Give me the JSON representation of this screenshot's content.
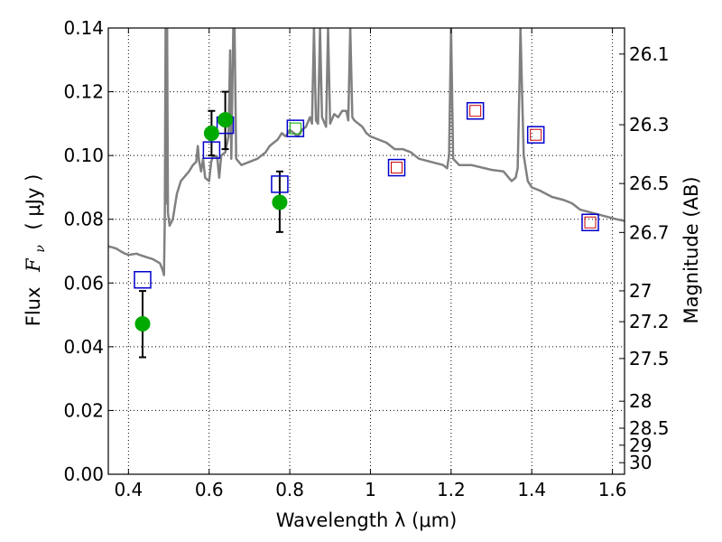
{
  "chart_data": {
    "type": "scatter",
    "xlabel": "Wavelength  λ (μm)",
    "ylabel_text": "Flux",
    "ylabel_symbol": "F",
    "ylabel_symbol_sub": "ν",
    "ylabel_unit": "( μJy )",
    "y2label": "Magnitude (AB)",
    "xlim": [
      0.35,
      1.63
    ],
    "ylim": [
      0.0,
      0.14
    ],
    "grid": true,
    "x_ticks": [
      {
        "value": 0.4,
        "label": "0.4"
      },
      {
        "value": 0.6,
        "label": "0.6"
      },
      {
        "value": 0.8,
        "label": "0.8"
      },
      {
        "value": 1.0,
        "label": "1"
      },
      {
        "value": 1.2,
        "label": "1.2"
      },
      {
        "value": 1.4,
        "label": "1.4"
      },
      {
        "value": 1.6,
        "label": "1.6"
      }
    ],
    "y_ticks": [
      {
        "value": 0.0,
        "label": "0.00"
      },
      {
        "value": 0.02,
        "label": "0.02"
      },
      {
        "value": 0.04,
        "label": "0.04"
      },
      {
        "value": 0.06,
        "label": "0.06"
      },
      {
        "value": 0.08,
        "label": "0.08"
      },
      {
        "value": 0.1,
        "label": "0.10"
      },
      {
        "value": 0.12,
        "label": "0.12"
      },
      {
        "value": 0.14,
        "label": "0.14"
      }
    ],
    "y2_ticks": [
      {
        "mag": 26.1,
        "label": "26.1"
      },
      {
        "mag": 26.3,
        "label": "26.3"
      },
      {
        "mag": 26.5,
        "label": "26.5"
      },
      {
        "mag": 26.7,
        "label": "26.7"
      },
      {
        "mag": 27.0,
        "label": "27"
      },
      {
        "mag": 27.2,
        "label": "27.2"
      },
      {
        "mag": 27.5,
        "label": "27.5"
      },
      {
        "mag": 28.0,
        "label": "28"
      },
      {
        "mag": 28.5,
        "label": "28.5"
      },
      {
        "mag": 29.0,
        "label": "29"
      },
      {
        "mag": 30.0,
        "label": "30"
      }
    ],
    "colors": {
      "sed_line": "#808080",
      "observed": "#00aa00",
      "model_outer": "#0000cc",
      "model_inner_red": "#cc0000",
      "model_inner_green": "#00aa00",
      "error_bar": "#000000"
    },
    "sed_model": [
      [
        0.35,
        0.0715
      ],
      [
        0.36,
        0.0712
      ],
      [
        0.37,
        0.0708
      ],
      [
        0.38,
        0.07
      ],
      [
        0.39,
        0.0693
      ],
      [
        0.4,
        0.0688
      ],
      [
        0.41,
        0.069
      ],
      [
        0.42,
        0.0692
      ],
      [
        0.43,
        0.0687
      ],
      [
        0.44,
        0.0683
      ],
      [
        0.45,
        0.0679
      ],
      [
        0.46,
        0.0675
      ],
      [
        0.47,
        0.0668
      ],
      [
        0.478,
        0.0662
      ],
      [
        0.485,
        0.064
      ],
      [
        0.488,
        0.0625
      ],
      [
        0.49,
        0.08
      ],
      [
        0.492,
        0.14
      ],
      [
        0.494,
        0.085
      ],
      [
        0.496,
        0.14
      ],
      [
        0.498,
        0.082
      ],
      [
        0.502,
        0.078
      ],
      [
        0.51,
        0.08
      ],
      [
        0.52,
        0.088
      ],
      [
        0.53,
        0.092
      ],
      [
        0.55,
        0.095
      ],
      [
        0.56,
        0.097
      ],
      [
        0.568,
        0.098
      ],
      [
        0.572,
        0.103
      ],
      [
        0.575,
        0.0985
      ],
      [
        0.58,
        0.095
      ],
      [
        0.585,
        0.099
      ],
      [
        0.59,
        0.093
      ],
      [
        0.6,
        0.092
      ],
      [
        0.605,
        0.098
      ],
      [
        0.61,
        0.1
      ],
      [
        0.62,
        0.0995
      ],
      [
        0.625,
        0.093
      ],
      [
        0.63,
        0.1
      ],
      [
        0.64,
        0.101
      ],
      [
        0.648,
        0.106
      ],
      [
        0.652,
        0.133
      ],
      [
        0.655,
        0.099
      ],
      [
        0.66,
        0.14
      ],
      [
        0.663,
        0.14
      ],
      [
        0.667,
        0.099
      ],
      [
        0.68,
        0.097
      ],
      [
        0.7,
        0.098
      ],
      [
        0.72,
        0.099
      ],
      [
        0.74,
        0.101
      ],
      [
        0.75,
        0.103
      ],
      [
        0.76,
        0.104
      ],
      [
        0.77,
        0.105
      ],
      [
        0.78,
        0.107
      ],
      [
        0.79,
        0.106
      ],
      [
        0.8,
        0.108
      ],
      [
        0.81,
        0.107
      ],
      [
        0.82,
        0.106
      ],
      [
        0.83,
        0.108
      ],
      [
        0.84,
        0.109
      ],
      [
        0.85,
        0.112
      ],
      [
        0.855,
        0.11
      ],
      [
        0.86,
        0.14
      ],
      [
        0.865,
        0.111
      ],
      [
        0.87,
        0.11
      ],
      [
        0.875,
        0.14
      ],
      [
        0.88,
        0.112
      ],
      [
        0.89,
        0.109
      ],
      [
        0.895,
        0.14
      ],
      [
        0.9,
        0.11
      ],
      [
        0.91,
        0.113
      ],
      [
        0.92,
        0.112
      ],
      [
        0.93,
        0.114
      ],
      [
        0.94,
        0.114
      ],
      [
        0.945,
        0.111
      ],
      [
        0.95,
        0.14
      ],
      [
        0.955,
        0.112
      ],
      [
        0.96,
        0.111
      ],
      [
        0.97,
        0.11
      ],
      [
        0.98,
        0.109
      ],
      [
        0.99,
        0.107
      ],
      [
        1.0,
        0.106
      ],
      [
        1.02,
        0.105
      ],
      [
        1.04,
        0.104
      ],
      [
        1.06,
        0.102
      ],
      [
        1.08,
        0.102
      ],
      [
        1.1,
        0.101
      ],
      [
        1.12,
        0.099
      ],
      [
        1.15,
        0.098
      ],
      [
        1.18,
        0.097
      ],
      [
        1.19,
        0.096
      ],
      [
        1.195,
        0.1
      ],
      [
        1.2,
        0.14
      ],
      [
        1.205,
        0.099
      ],
      [
        1.22,
        0.097
      ],
      [
        1.25,
        0.097
      ],
      [
        1.3,
        0.0955
      ],
      [
        1.33,
        0.095
      ],
      [
        1.35,
        0.092
      ],
      [
        1.36,
        0.093
      ],
      [
        1.365,
        0.096
      ],
      [
        1.37,
        0.125
      ],
      [
        1.372,
        0.14
      ],
      [
        1.375,
        0.125
      ],
      [
        1.38,
        0.1
      ],
      [
        1.39,
        0.092
      ],
      [
        1.4,
        0.09
      ],
      [
        1.42,
        0.089
      ],
      [
        1.45,
        0.087
      ],
      [
        1.48,
        0.086
      ],
      [
        1.5,
        0.085
      ],
      [
        1.52,
        0.083
      ],
      [
        1.55,
        0.082
      ],
      [
        1.58,
        0.081
      ],
      [
        1.61,
        0.08
      ],
      [
        1.63,
        0.0795
      ]
    ],
    "observed": [
      {
        "x": 0.435,
        "y": 0.0472,
        "yerr_low": 0.0367,
        "yerr_high": 0.0575
      },
      {
        "x": 0.606,
        "y": 0.107,
        "yerr_low": 0.1,
        "yerr_high": 0.114
      },
      {
        "x": 0.64,
        "y": 0.1112,
        "yerr_low": 0.102,
        "yerr_high": 0.12
      },
      {
        "x": 0.775,
        "y": 0.0853,
        "yerr_low": 0.076,
        "yerr_high": 0.095
      }
    ],
    "model_photometry": [
      {
        "x": 0.435,
        "y": 0.061,
        "inner": "none"
      },
      {
        "x": 0.606,
        "y": 0.1017,
        "inner": "none"
      },
      {
        "x": 0.64,
        "y": 0.1095,
        "inner": "none"
      },
      {
        "x": 0.775,
        "y": 0.091,
        "inner": "none"
      },
      {
        "x": 0.814,
        "y": 0.1085,
        "inner": "green"
      },
      {
        "x": 1.065,
        "y": 0.0962,
        "inner": "red"
      },
      {
        "x": 1.26,
        "y": 0.114,
        "inner": "red"
      },
      {
        "x": 1.41,
        "y": 0.1065,
        "inner": "red"
      },
      {
        "x": 1.545,
        "y": 0.079,
        "inner": "red"
      }
    ]
  }
}
